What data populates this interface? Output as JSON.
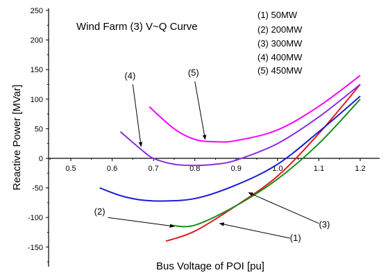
{
  "chart_data": {
    "type": "line",
    "title": "Wind Farm (3) V~Q Curve",
    "xlabel": "Bus Voltage of POI [pu]",
    "ylabel": "Reactive Power [MVar]",
    "xlim": [
      0.42,
      1.25
    ],
    "ylim": [
      -180,
      250
    ],
    "x_ticks": [
      0.5,
      0.6,
      0.7,
      0.8,
      0.9,
      1.0,
      1.1,
      1.2
    ],
    "x_tick_labels": [
      "0.5",
      "0.6",
      "0.7",
      "0.8",
      "0.9",
      "1.0",
      "1.1",
      "1.2"
    ],
    "y_ticks": [
      -150,
      -100,
      -50,
      0,
      50,
      100,
      150,
      200,
      250
    ],
    "y_tick_labels": [
      "-150",
      "-100",
      "-50",
      "0",
      "50",
      "100",
      "150",
      "200",
      "250"
    ],
    "grid": false,
    "legend": {
      "placement": "top-right",
      "entries": [
        "(1) 50MW",
        "(2) 200MW",
        "(3) 300MW",
        "(4) 400MW",
        "(5) 450MW"
      ]
    },
    "series": [
      {
        "name": "(1) 50MW",
        "color": "#e31a1c",
        "x": [
          0.73,
          0.8,
          0.9,
          1.0,
          1.1,
          1.2
        ],
        "y": [
          -140,
          -123,
          -80,
          -30,
          42,
          125
        ]
      },
      {
        "name": "(2) 200MW",
        "color": "#1a8c1a",
        "x": [
          0.74,
          0.8,
          0.9,
          1.0,
          1.1,
          1.2
        ],
        "y": [
          -113,
          -113,
          -80,
          -35,
          25,
          100
        ]
      },
      {
        "name": "(3) 300MW",
        "color": "#1a1ad6",
        "x": [
          0.57,
          0.63,
          0.7,
          0.8,
          0.9,
          1.0,
          1.1,
          1.2
        ],
        "y": [
          -50,
          -65,
          -72,
          -68,
          -45,
          -10,
          45,
          105
        ]
      },
      {
        "name": "(4) 400MW",
        "color": "#8a2be2",
        "x": [
          0.62,
          0.67,
          0.7,
          0.75,
          0.8,
          0.85,
          0.9,
          1.0,
          1.1,
          1.2
        ],
        "y": [
          45,
          15,
          0,
          -10,
          -12,
          -10,
          -3,
          25,
          70,
          125
        ]
      },
      {
        "name": "(5) 450MW",
        "color": "#ff00ff",
        "x": [
          0.69,
          0.75,
          0.8,
          0.85,
          0.9,
          1.0,
          1.1,
          1.2
        ],
        "y": [
          87,
          50,
          32,
          28,
          30,
          48,
          88,
          140
        ]
      }
    ],
    "annotations": [
      {
        "text": "(1)",
        "from": [
          1.03,
          -135
        ],
        "to": [
          0.86,
          -110
        ]
      },
      {
        "text": "(2)",
        "from": [
          0.59,
          -100
        ],
        "to": [
          0.75,
          -115
        ]
      },
      {
        "text": "(3)",
        "from": [
          1.1,
          -110
        ],
        "to": [
          0.93,
          -58
        ]
      },
      {
        "text": "(4)",
        "from": [
          0.65,
          125
        ],
        "to": [
          0.67,
          20
        ]
      },
      {
        "text": "(5)",
        "from": [
          0.8,
          130
        ],
        "to": [
          0.825,
          32
        ]
      }
    ]
  }
}
